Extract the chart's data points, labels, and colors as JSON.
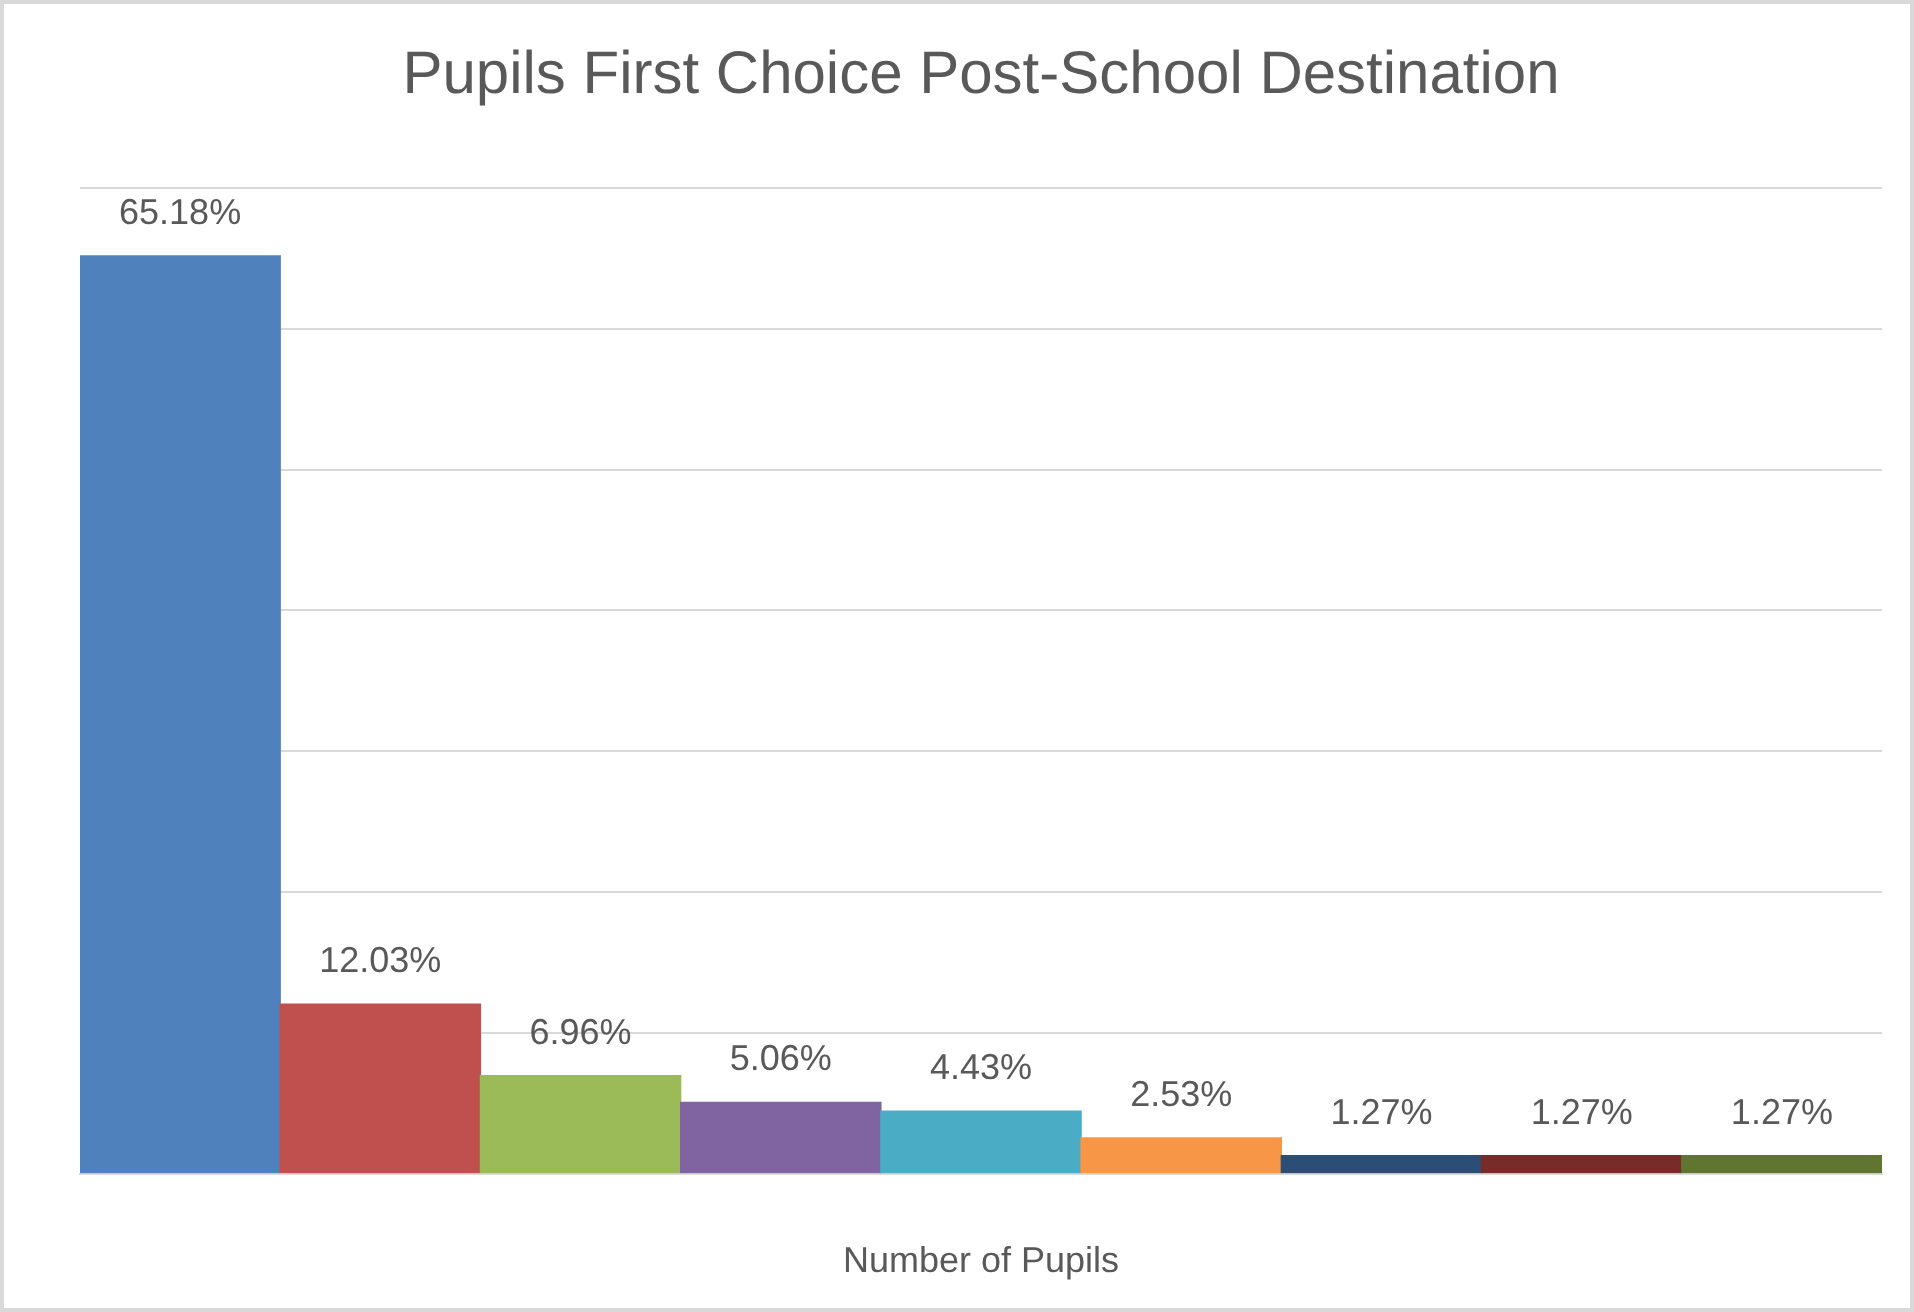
{
  "chart_data": {
    "type": "bar",
    "title": "Pupils First Choice Post-School Destination",
    "xlabel": "Number of Pupils",
    "categories": [
      null,
      null,
      null,
      null,
      null,
      null,
      null,
      null,
      null
    ],
    "values": [
      65.18,
      12.03,
      6.96,
      5.06,
      4.43,
      2.53,
      1.27,
      1.27,
      1.27
    ],
    "colors": [
      "#4f81bd",
      "#c0504d",
      "#9bbb59",
      "#8064a2",
      "#4bacc6",
      "#f79646",
      "#2c4d75",
      "#772c2a",
      "#5f7530"
    ],
    "value_labels": [
      "65.18%",
      "12.03%",
      "6.96%",
      "5.06%",
      "4.43%",
      "2.53%",
      "1.27%",
      "1.27%",
      "1.27%"
    ],
    "ylim": [
      0,
      70
    ],
    "yticks": [
      {
        "value": 0,
        "label": null
      },
      {
        "value": 10,
        "label": null
      },
      {
        "value": 20,
        "label": null
      },
      {
        "value": 30,
        "label": null
      },
      {
        "value": 40,
        "label": null
      },
      {
        "value": 50,
        "label": null
      },
      {
        "value": 60,
        "label": null
      },
      {
        "value": 70,
        "label": null
      }
    ],
    "grid": "y",
    "tick_labels": "x",
    "legend": false
  }
}
